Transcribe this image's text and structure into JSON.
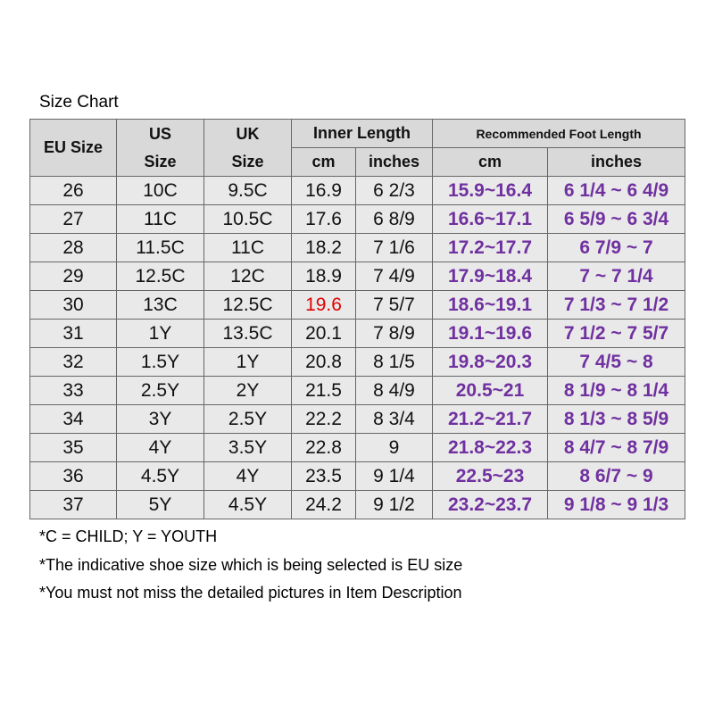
{
  "title": "Size Chart",
  "table": {
    "header": {
      "eu": "EU Size",
      "us": [
        "US",
        "Size"
      ],
      "uk": [
        "UK",
        "Size"
      ],
      "inner": "Inner Length",
      "rec": "Recommended Foot Length",
      "sub": [
        "cm",
        "inches",
        "cm",
        "inches"
      ]
    },
    "rows": [
      [
        "26",
        "10C",
        "9.5C",
        "16.9",
        "6 2/3",
        "15.9~16.4",
        "6 1/4 ~ 6 4/9"
      ],
      [
        "27",
        "11C",
        "10.5C",
        "17.6",
        "6 8/9",
        "16.6~17.1",
        "6 5/9 ~ 6 3/4"
      ],
      [
        "28",
        "11.5C",
        "11C",
        "18.2",
        "7 1/6",
        "17.2~17.7",
        "6 7/9 ~ 7"
      ],
      [
        "29",
        "12.5C",
        "12C",
        "18.9",
        "7 4/9",
        "17.9~18.4",
        "7 ~ 7 1/4"
      ],
      [
        "30",
        "13C",
        "12.5C",
        "19.6",
        "7 5/7",
        "18.6~19.1",
        "7 1/3 ~ 7 1/2"
      ],
      [
        "31",
        "1Y",
        "13.5C",
        "20.1",
        "7 8/9",
        "19.1~19.6",
        "7 1/2 ~ 7 5/7"
      ],
      [
        "32",
        "1.5Y",
        "1Y",
        "20.8",
        "8 1/5",
        "19.8~20.3",
        "7 4/5 ~ 8"
      ],
      [
        "33",
        "2.5Y",
        "2Y",
        "21.5",
        "8 4/9",
        "20.5~21",
        "8 1/9 ~ 8 1/4"
      ],
      [
        "34",
        "3Y",
        "2.5Y",
        "22.2",
        "8 3/4",
        "21.2~21.7",
        "8 1/3 ~ 8 5/9"
      ],
      [
        "35",
        "4Y",
        "3.5Y",
        "22.8",
        "9",
        "21.8~22.3",
        "8 4/7 ~ 8 7/9"
      ],
      [
        "36",
        "4.5Y",
        "4Y",
        "23.5",
        "9 1/4",
        "22.5~23",
        "8 6/7 ~ 9"
      ],
      [
        "37",
        "5Y",
        "4.5Y",
        "24.2",
        "9 1/2",
        "23.2~23.7",
        "9 1/8 ~ 9 1/3"
      ]
    ]
  },
  "notes": [
    "*C = CHILD; Y = YOUTH",
    "*The indicative shoe size which is being selected is EU size",
    "*You must not miss the detailed pictures in Item Description"
  ]
}
